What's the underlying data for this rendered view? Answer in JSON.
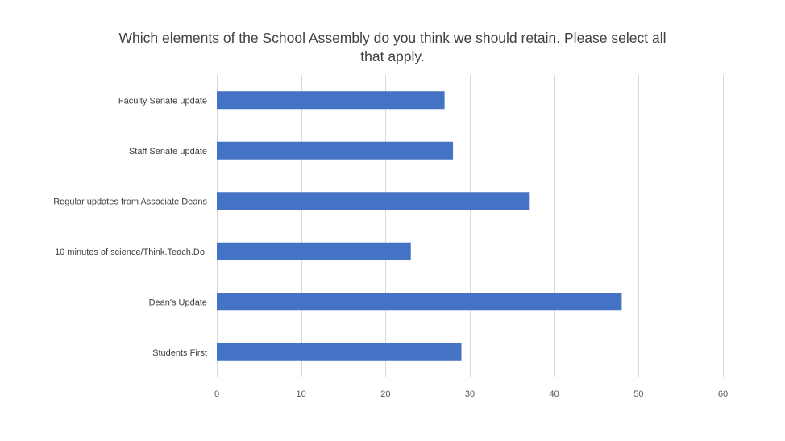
{
  "chart_data": {
    "type": "bar",
    "orientation": "horizontal",
    "title": "Which elements of the School Assembly do you think we should retain. Please select all that apply.",
    "categories": [
      "Faculty Senate update",
      "Staff Senate update",
      "Regular updates from Associate Deans",
      "10 minutes of science/Think.Teach.Do.",
      "Dean's Update",
      "Students First"
    ],
    "values": [
      27,
      28,
      37,
      23,
      48,
      29
    ],
    "xlim": [
      0,
      60
    ],
    "xticks": [
      "0",
      "10",
      "20",
      "30",
      "40",
      "50",
      "60"
    ],
    "grid": true,
    "legend": "none",
    "bar_color": "#4472c4",
    "gridline_color": "#d9d9d9"
  }
}
